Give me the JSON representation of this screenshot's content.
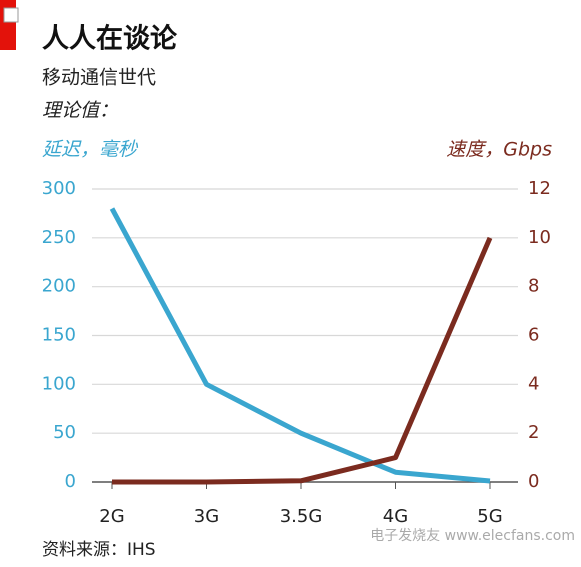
{
  "chart_data": {
    "type": "line",
    "title": "人人在谈论",
    "subtitle": "移动通信世代",
    "note": "理论值：",
    "y_label": "延迟，毫秒",
    "y2_label": "速度，Gbps",
    "source": "资料来源：IHS",
    "watermark": "电子发烧友 www.elecfans.com",
    "categories": [
      "2G",
      "3G",
      "3.5G",
      "4G",
      "5G"
    ],
    "series": [
      {
        "name": "延迟",
        "color": "#3aa6cf",
        "values": [
          280,
          100,
          50,
          10,
          1
        ]
      },
      {
        "name": "速度",
        "color": "#7b2b1f",
        "axis": "y2",
        "values": [
          0,
          0,
          0.05,
          1,
          10
        ]
      }
    ],
    "ylim": [
      0,
      300
    ],
    "yticks": [
      0,
      50,
      100,
      150,
      200,
      250,
      300
    ],
    "y2lim": [
      0,
      12
    ],
    "y2ticks": [
      0,
      2,
      4,
      6,
      8,
      10,
      12
    ],
    "grid": true
  }
}
